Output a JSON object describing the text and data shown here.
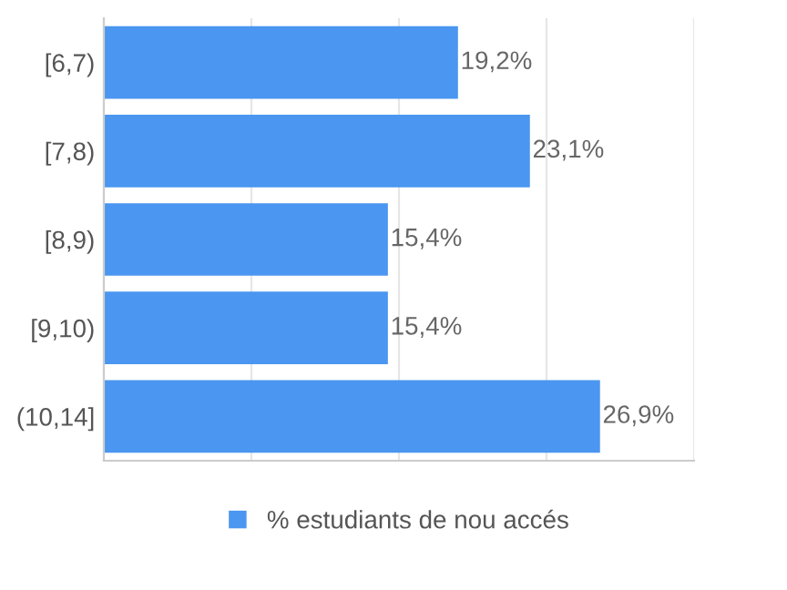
{
  "chart_data": {
    "type": "bar",
    "orientation": "horizontal",
    "categories": [
      "[6,7)",
      "[7,8)",
      "[8,9)",
      "[9,10)",
      "(10,14]"
    ],
    "series": [
      {
        "name": "% estudiants de nou accés",
        "color": "#4a96f0",
        "values": [
          19.2,
          23.1,
          15.4,
          15.4,
          26.9
        ],
        "value_labels": [
          "19,2%",
          "23,1%",
          "15,4%",
          "15,4%",
          "26,9%"
        ]
      }
    ],
    "xlim": [
      0,
      32
    ],
    "xticks": [
      {
        "value": 0,
        "label": null
      },
      {
        "value": 8,
        "label": null
      },
      {
        "value": 16,
        "label": null
      },
      {
        "value": 24,
        "label": null
      },
      {
        "value": 32,
        "label": null
      }
    ],
    "tick_labels": "y",
    "grid": "x",
    "legend": "bottom"
  }
}
